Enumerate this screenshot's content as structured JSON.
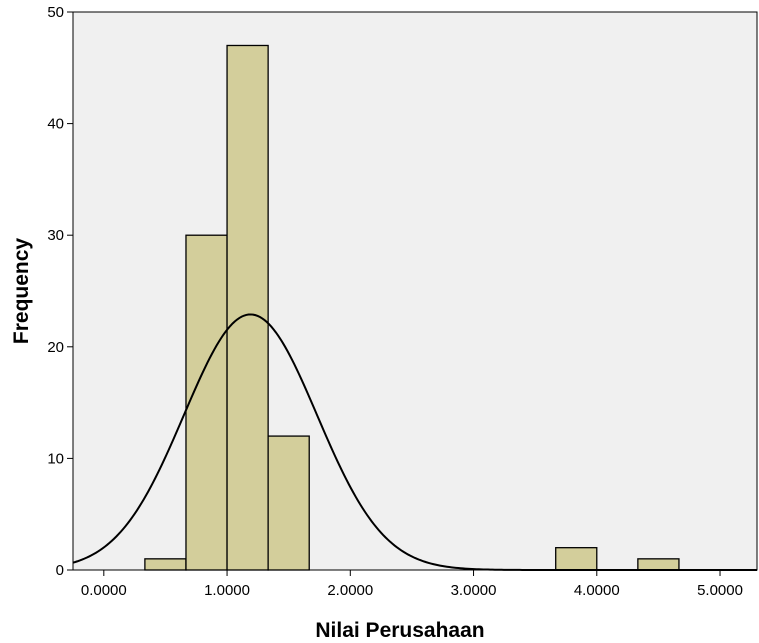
{
  "chart_data": {
    "type": "bar",
    "subtype": "histogram-with-normal-curve",
    "xlabel": "Nilai Perusahaan",
    "ylabel": "Frequency",
    "xlim": [
      -0.25,
      5.3
    ],
    "ylim": [
      0,
      50
    ],
    "x_ticks": [
      0,
      1,
      2,
      3,
      4,
      5
    ],
    "x_tick_labels": [
      "0.0000",
      "1.0000",
      "2.0000",
      "3.0000",
      "4.0000",
      "5.0000"
    ],
    "y_ticks": [
      0,
      10,
      20,
      30,
      40,
      50
    ],
    "y_tick_labels": [
      "0",
      "10",
      "20",
      "30",
      "40",
      "50"
    ],
    "bin_width": 0.3333,
    "bins": [
      {
        "start": 0.3333,
        "end": 0.6667,
        "count": 1
      },
      {
        "start": 0.6667,
        "end": 1.0,
        "count": 30
      },
      {
        "start": 1.0,
        "end": 1.3333,
        "count": 47
      },
      {
        "start": 1.3333,
        "end": 1.6667,
        "count": 12
      },
      {
        "start": 3.6667,
        "end": 4.0,
        "count": 2
      },
      {
        "start": 4.3333,
        "end": 4.6667,
        "count": 1
      }
    ],
    "normal_curve": {
      "mean": 1.19,
      "std_dev": 0.54,
      "n": 93
    },
    "colors": {
      "bar_fill": "#d3ce9b",
      "bar_stroke": "#000000",
      "plot_background": "#f0f0f0",
      "curve": "#000000"
    },
    "grid": false,
    "legend": "none"
  }
}
